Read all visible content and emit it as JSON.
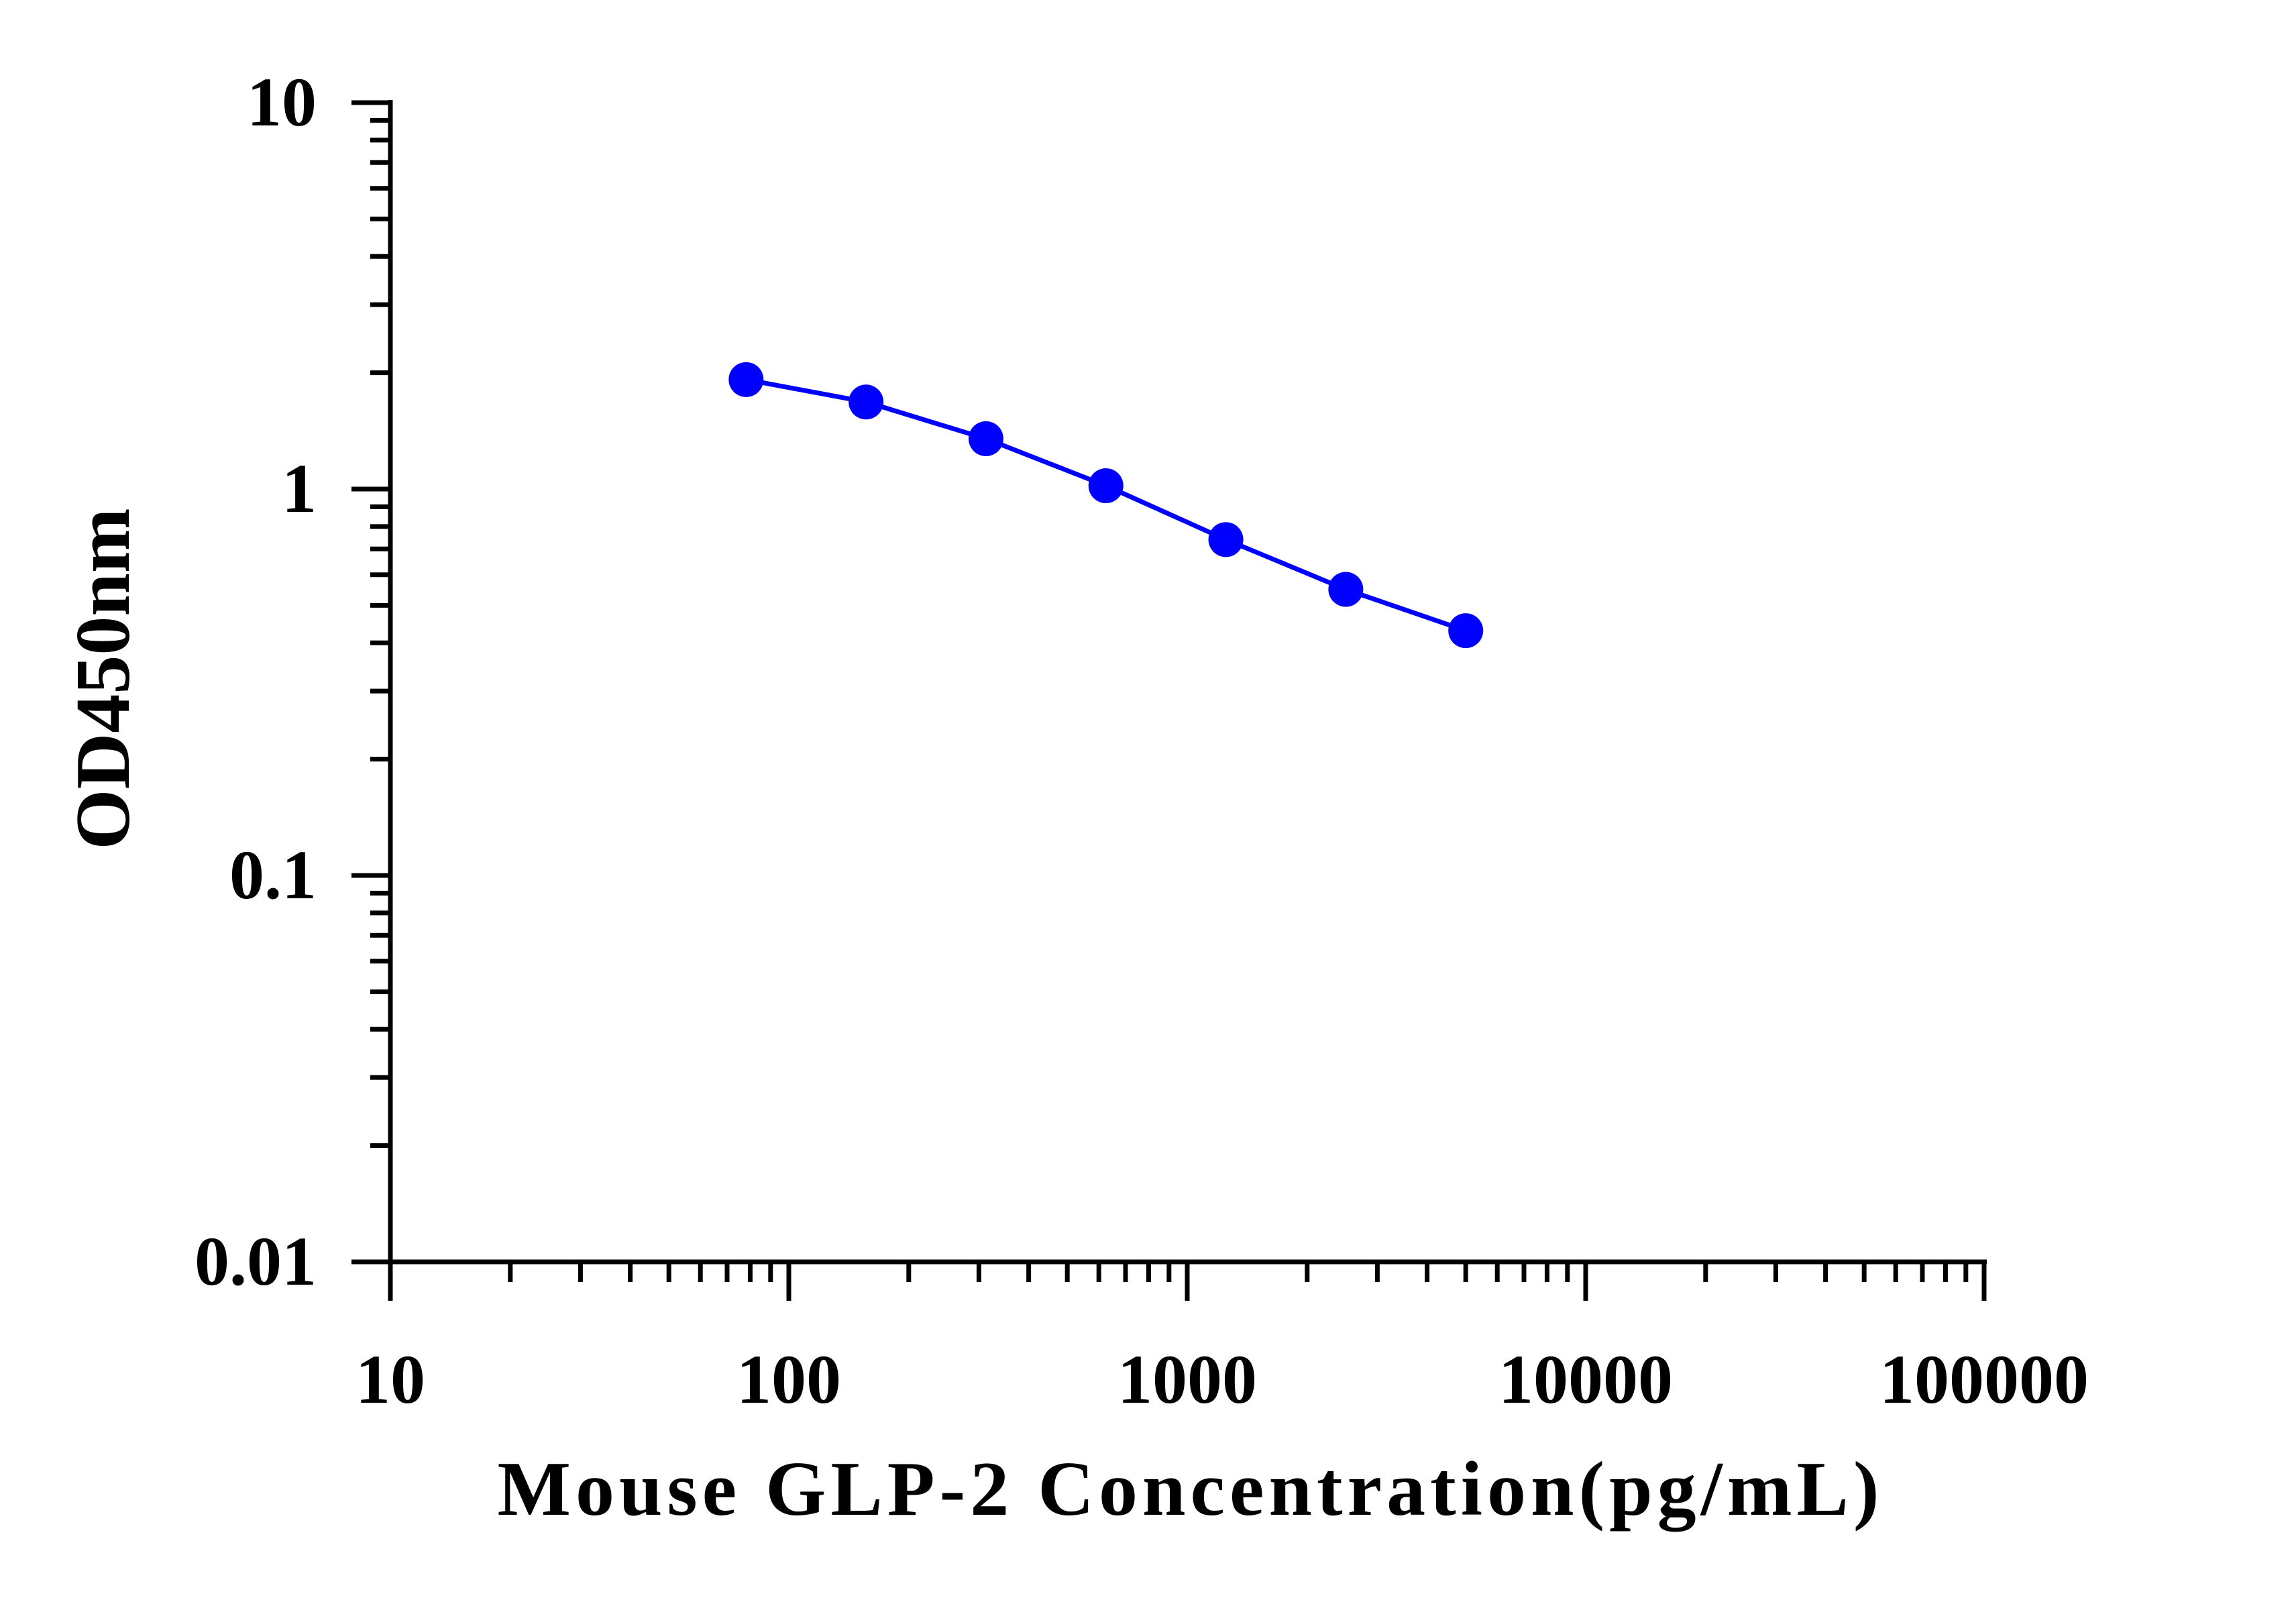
{
  "chart_data": {
    "type": "line",
    "title": "",
    "xlabel": "Mouse GLP-2 Concentration(pg/mL)",
    "ylabel": "OD450nm",
    "x_scale": "log",
    "y_scale": "log",
    "xlim": [
      10,
      100000
    ],
    "ylim": [
      0.01,
      10
    ],
    "x_ticks": [
      10,
      100,
      1000,
      10000,
      100000
    ],
    "x_tick_labels": [
      "10",
      "100",
      "1000",
      "10000",
      "100000"
    ],
    "y_ticks": [
      0.01,
      0.1,
      1,
      10
    ],
    "y_tick_labels": [
      "0.01",
      "0.1",
      "1",
      "10"
    ],
    "grid": false,
    "legend": "none",
    "series": [
      {
        "color": "#0000ff",
        "marker": "circle",
        "x": [
          78.125,
          156.25,
          312.5,
          625,
          1250,
          2500,
          5000
        ],
        "y": [
          1.92,
          1.68,
          1.35,
          1.02,
          0.74,
          0.55,
          0.43
        ]
      }
    ]
  }
}
